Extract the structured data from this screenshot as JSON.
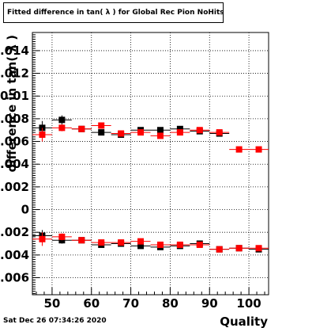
{
  "title": "Fitted difference in tan( λ ) for Global Rec Pion NoHits",
  "timestamp": "Sat Dec 26 07:34:26 2020",
  "chart_data": {
    "type": "scatter",
    "title": "Fitted difference in tan( λ ) for Global Rec Pion NoHits",
    "xlabel": "Quality",
    "ylabel": "difference in tan( λ )",
    "xlim": [
      45,
      105
    ],
    "ylim": [
      -0.0075,
      0.0156
    ],
    "grid": true,
    "x_ticks": [
      "50",
      "60",
      "70",
      "80",
      "90",
      "100"
    ],
    "y_ticks": [
      "-0.006",
      "-0.004",
      "-0.002",
      "0",
      "0.002",
      "0.004",
      "0.006",
      "0.008",
      "0.01",
      "0.012",
      "0.014"
    ],
    "colors": {
      "black_series": "#000000",
      "red_series": "#ff0000"
    },
    "series": [
      {
        "marker": "square",
        "color": "#000000",
        "x": [
          47.5,
          52.5,
          57.5,
          62.5,
          67.5,
          72.5,
          77.5,
          82.5,
          87.5,
          92.5
        ],
        "y": [
          0.0072,
          0.0079,
          0.0071,
          0.0068,
          0.0066,
          0.007,
          0.007,
          0.0071,
          0.0069,
          0.0067
        ],
        "yerr": [
          0.0006,
          0.0004,
          0.0002,
          0.0002,
          0.0002,
          0.0002,
          0.0002,
          0.0002,
          0.0002,
          0.0002
        ]
      },
      {
        "marker": "square",
        "color": "#ff0000",
        "x": [
          47.5,
          52.5,
          57.5,
          62.5,
          67.5,
          72.5,
          77.5,
          82.5,
          87.5,
          92.5,
          97.5,
          102.5
        ],
        "y": [
          0.0066,
          0.0072,
          0.0071,
          0.0074,
          0.0067,
          0.0068,
          0.0065,
          0.0068,
          0.007,
          0.0068,
          0.0053,
          0.0053
        ],
        "yerr": [
          0.0006,
          0.0003,
          0.0002,
          0.0002,
          0.0002,
          0.0002,
          0.0002,
          0.0002,
          0.0002,
          0.0002,
          0.0001,
          0.0001
        ]
      },
      {
        "marker": "square",
        "color": "#000000",
        "x": [
          47.5,
          52.5,
          57.5,
          62.5,
          67.5,
          72.5,
          77.5,
          82.5,
          87.5,
          92.5,
          97.5,
          102.5
        ],
        "y": [
          -0.0023,
          -0.0027,
          -0.0027,
          -0.0031,
          -0.003,
          -0.0032,
          -0.0033,
          -0.0032,
          -0.003,
          -0.0035,
          -0.0034,
          -0.0035
        ],
        "yerr": [
          0.0005,
          0.0003,
          0.0002,
          0.0002,
          0.0002,
          0.0002,
          0.0002,
          0.0002,
          0.0002,
          0.0002,
          0.0001,
          0.0001
        ]
      },
      {
        "marker": "square",
        "color": "#ff0000",
        "x": [
          47.5,
          52.5,
          57.5,
          62.5,
          67.5,
          72.5,
          77.5,
          82.5,
          87.5,
          92.5,
          97.5,
          102.5
        ],
        "y": [
          -0.0026,
          -0.0024,
          -0.0027,
          -0.0029,
          -0.0029,
          -0.0028,
          -0.0031,
          -0.0031,
          -0.0031,
          -0.0035,
          -0.0034,
          -0.0034
        ],
        "yerr": [
          0.0006,
          0.0003,
          0.0002,
          0.0002,
          0.0002,
          0.0002,
          0.0002,
          0.0002,
          0.0002,
          0.0002,
          0.0001,
          0.0001
        ]
      }
    ]
  }
}
